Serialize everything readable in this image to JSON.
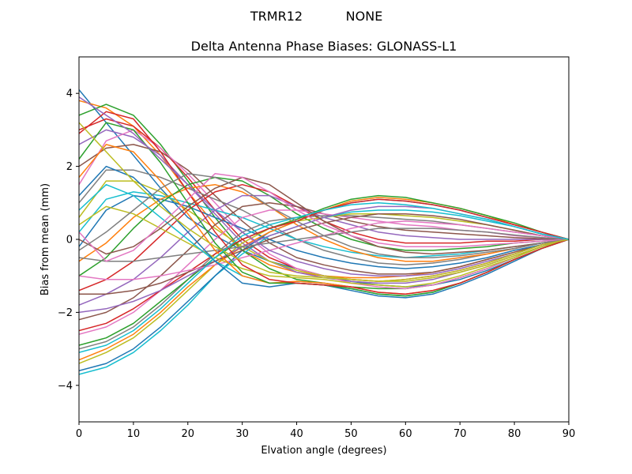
{
  "suptitle": {
    "left": "TRMR12",
    "right": "NONE"
  },
  "chart_data": {
    "type": "line",
    "title": "Delta Antenna Phase Biases: GLONASS-L1",
    "xlabel": "Elvation angle (degrees)",
    "ylabel": "Bias from mean (mm)",
    "xlim": [
      0,
      90
    ],
    "ylim": [
      -5,
      5
    ],
    "xticks": [
      0,
      10,
      20,
      30,
      40,
      50,
      60,
      70,
      80,
      90
    ],
    "yticks": [
      -4,
      -2,
      0,
      2,
      4
    ],
    "grid": false,
    "legend": "none",
    "x": [
      0,
      5,
      10,
      15,
      20,
      25,
      30,
      35,
      40,
      45,
      50,
      55,
      60,
      65,
      70,
      75,
      80,
      85,
      90
    ],
    "palette": [
      "#1f77b4",
      "#ff7f0e",
      "#2ca02c",
      "#d62728",
      "#9467bd",
      "#8c564b",
      "#e377c2",
      "#7f7f7f",
      "#bcbd22",
      "#17becf"
    ],
    "series": [
      {
        "values": [
          4.1,
          3.2,
          2.3,
          1.4,
          0.6,
          0.1,
          -0.3,
          -0.6,
          -0.8,
          -1.0,
          -1.15,
          -1.25,
          -1.3,
          -1.25,
          -1.1,
          -0.85,
          -0.55,
          -0.25,
          0
        ]
      },
      {
        "values": [
          3.8,
          3.6,
          3.1,
          2.3,
          1.3,
          0.4,
          -0.3,
          -0.7,
          -0.9,
          -1.0,
          -1.05,
          -1.05,
          -1.0,
          -0.9,
          -0.75,
          -0.55,
          -0.35,
          -0.15,
          0
        ]
      },
      {
        "values": [
          3.4,
          3.7,
          3.4,
          2.6,
          1.6,
          0.6,
          -0.3,
          -0.8,
          -1.1,
          -1.2,
          -1.3,
          -1.35,
          -1.35,
          -1.25,
          -1.05,
          -0.8,
          -0.5,
          -0.2,
          0
        ]
      },
      {
        "values": [
          3.0,
          3.3,
          3.1,
          2.5,
          1.7,
          0.8,
          0.0,
          -0.5,
          -0.8,
          -1.0,
          -1.1,
          -1.15,
          -1.1,
          -1.0,
          -0.85,
          -0.65,
          -0.4,
          -0.15,
          0
        ]
      },
      {
        "values": [
          2.6,
          3.0,
          2.8,
          2.3,
          1.5,
          0.7,
          -0.1,
          -0.6,
          -0.9,
          -1.05,
          -1.15,
          -1.2,
          -1.2,
          -1.1,
          -0.9,
          -0.7,
          -0.45,
          -0.2,
          0
        ]
      },
      {
        "values": [
          2.0,
          2.5,
          2.6,
          2.4,
          1.9,
          1.2,
          0.5,
          -0.1,
          -0.5,
          -0.7,
          -0.85,
          -0.95,
          -0.95,
          -0.9,
          -0.75,
          -0.55,
          -0.35,
          -0.15,
          0
        ]
      },
      {
        "values": [
          1.5,
          2.7,
          3.0,
          2.5,
          1.8,
          1.0,
          0.2,
          -0.4,
          -0.8,
          -1.0,
          -1.2,
          -1.3,
          -1.35,
          -1.25,
          -1.05,
          -0.8,
          -0.5,
          -0.2,
          0
        ]
      },
      {
        "values": [
          1.0,
          1.9,
          1.9,
          1.7,
          1.4,
          1.1,
          0.8,
          0.4,
          0.0,
          -0.3,
          -0.5,
          -0.65,
          -0.7,
          -0.65,
          -0.55,
          -0.4,
          -0.25,
          -0.1,
          0
        ]
      },
      {
        "values": [
          0.6,
          1.6,
          1.6,
          1.3,
          0.8,
          0.3,
          -0.2,
          -0.6,
          -0.85,
          -1.0,
          -1.1,
          -1.15,
          -1.15,
          -1.05,
          -0.9,
          -0.7,
          -0.45,
          -0.2,
          0
        ]
      },
      {
        "values": [
          0.2,
          1.1,
          1.3,
          1.2,
          1.0,
          0.8,
          0.6,
          0.3,
          0.0,
          -0.2,
          -0.35,
          -0.45,
          -0.5,
          -0.45,
          -0.4,
          -0.3,
          -0.2,
          -0.1,
          0
        ]
      },
      {
        "values": [
          -0.2,
          0.8,
          1.2,
          1.1,
          0.9,
          0.6,
          0.3,
          0.0,
          -0.3,
          -0.5,
          -0.65,
          -0.75,
          -0.8,
          -0.75,
          -0.65,
          -0.5,
          -0.3,
          -0.15,
          0
        ]
      },
      {
        "values": [
          -0.6,
          -0.1,
          0.6,
          1.1,
          1.4,
          1.5,
          1.3,
          0.9,
          0.4,
          0.0,
          -0.3,
          -0.5,
          -0.6,
          -0.6,
          -0.5,
          -0.4,
          -0.25,
          -0.1,
          0
        ]
      },
      {
        "values": [
          -1.0,
          -0.5,
          0.3,
          1.0,
          1.5,
          1.7,
          1.6,
          1.2,
          0.7,
          0.3,
          0.0,
          -0.2,
          -0.3,
          -0.3,
          -0.25,
          -0.2,
          -0.1,
          -0.05,
          0
        ]
      },
      {
        "values": [
          -1.4,
          -1.1,
          -0.6,
          0.1,
          0.8,
          1.3,
          1.5,
          1.3,
          0.9,
          0.5,
          0.2,
          0.0,
          -0.1,
          -0.1,
          -0.1,
          -0.05,
          -0.05,
          0.0,
          0
        ]
      },
      {
        "values": [
          -1.8,
          -1.5,
          -1.1,
          -0.5,
          0.2,
          0.8,
          1.2,
          1.2,
          0.9,
          0.6,
          0.4,
          0.2,
          0.1,
          0.05,
          0.0,
          0.0,
          0.0,
          0.0,
          0
        ]
      },
      {
        "values": [
          -2.2,
          -2.0,
          -1.6,
          -1.0,
          -0.3,
          0.4,
          0.9,
          1.0,
          0.9,
          0.7,
          0.5,
          0.35,
          0.25,
          0.2,
          0.15,
          0.1,
          0.05,
          0.02,
          0
        ]
      },
      {
        "values": [
          -2.6,
          -2.4,
          -2.0,
          -1.4,
          -0.7,
          0.0,
          0.6,
          0.8,
          0.8,
          0.7,
          0.6,
          0.5,
          0.4,
          0.35,
          0.25,
          0.2,
          0.1,
          0.05,
          0
        ]
      },
      {
        "values": [
          -3.0,
          -2.8,
          -2.4,
          -1.8,
          -1.1,
          -0.4,
          0.2,
          0.5,
          0.6,
          0.65,
          0.65,
          0.6,
          0.55,
          0.5,
          0.4,
          0.3,
          0.2,
          0.1,
          0
        ]
      },
      {
        "values": [
          -3.4,
          -3.1,
          -2.7,
          -2.1,
          -1.4,
          -0.7,
          -0.1,
          0.3,
          0.5,
          0.6,
          0.7,
          0.7,
          0.65,
          0.6,
          0.5,
          0.4,
          0.25,
          0.1,
          0
        ]
      },
      {
        "values": [
          -3.7,
          -3.5,
          -3.1,
          -2.5,
          -1.8,
          -1.0,
          -0.4,
          0.1,
          0.35,
          0.6,
          0.75,
          0.8,
          0.8,
          0.75,
          0.65,
          0.5,
          0.35,
          0.15,
          0
        ]
      },
      {
        "values": [
          -3.6,
          -3.4,
          -3.0,
          -2.4,
          -1.7,
          -1.0,
          -0.3,
          0.2,
          0.5,
          0.8,
          1.0,
          1.1,
          1.05,
          0.95,
          0.8,
          0.6,
          0.4,
          0.2,
          0
        ]
      },
      {
        "values": [
          -3.3,
          -3.0,
          -2.6,
          -2.0,
          -1.3,
          -0.7,
          -0.2,
          0.2,
          0.5,
          0.8,
          1.05,
          1.15,
          1.1,
          1.0,
          0.85,
          0.65,
          0.4,
          0.2,
          0
        ]
      },
      {
        "values": [
          -2.9,
          -2.7,
          -2.3,
          -1.7,
          -1.1,
          -0.5,
          0.0,
          0.3,
          0.55,
          0.85,
          1.1,
          1.2,
          1.15,
          1.0,
          0.85,
          0.65,
          0.45,
          0.2,
          0
        ]
      },
      {
        "values": [
          -2.5,
          -2.3,
          -1.9,
          -1.4,
          -0.9,
          -0.4,
          0.0,
          0.3,
          0.5,
          0.8,
          1.0,
          1.1,
          1.05,
          0.95,
          0.8,
          0.6,
          0.4,
          0.2,
          0
        ]
      },
      {
        "values": [
          -2.0,
          -1.9,
          -1.7,
          -1.4,
          -1.0,
          -0.6,
          -0.2,
          0.1,
          0.35,
          0.6,
          0.8,
          0.9,
          0.9,
          0.85,
          0.7,
          0.55,
          0.35,
          0.15,
          0
        ]
      },
      {
        "values": [
          -1.5,
          -1.5,
          -1.4,
          -1.2,
          -0.9,
          -0.6,
          -0.3,
          0.0,
          0.25,
          0.45,
          0.6,
          0.7,
          0.7,
          0.65,
          0.55,
          0.4,
          0.25,
          0.1,
          0
        ]
      },
      {
        "values": [
          -1.0,
          -1.1,
          -1.1,
          -1.0,
          -0.85,
          -0.7,
          -0.5,
          -0.3,
          -0.1,
          0.1,
          0.3,
          0.45,
          0.5,
          0.45,
          0.4,
          0.3,
          0.2,
          0.1,
          0
        ]
      },
      {
        "values": [
          -0.5,
          -0.6,
          -0.6,
          -0.5,
          -0.4,
          -0.3,
          -0.2,
          -0.1,
          0.0,
          0.1,
          0.2,
          0.3,
          0.3,
          0.3,
          0.25,
          0.2,
          0.12,
          0.05,
          0
        ]
      },
      {
        "values": [
          0.4,
          0.9,
          0.7,
          0.3,
          -0.1,
          -0.5,
          -0.8,
          -1.0,
          -1.05,
          -1.1,
          -1.2,
          -1.25,
          -1.3,
          -1.2,
          -1.0,
          -0.75,
          -0.5,
          -0.2,
          0
        ]
      },
      {
        "values": [
          0.8,
          1.5,
          1.2,
          0.6,
          0.0,
          -0.6,
          -1.0,
          -1.2,
          -1.2,
          -1.25,
          -1.35,
          -1.5,
          -1.55,
          -1.45,
          -1.2,
          -0.9,
          -0.55,
          -0.25,
          0
        ]
      },
      {
        "values": [
          1.2,
          2.0,
          1.7,
          1.0,
          0.2,
          -0.6,
          -1.2,
          -1.3,
          -1.2,
          -1.25,
          -1.4,
          -1.55,
          -1.6,
          -1.5,
          -1.25,
          -0.95,
          -0.6,
          -0.25,
          0
        ]
      },
      {
        "values": [
          1.7,
          2.6,
          2.4,
          1.6,
          0.7,
          -0.3,
          -1.0,
          -1.2,
          -1.15,
          -1.2,
          -1.3,
          -1.45,
          -1.5,
          -1.4,
          -1.2,
          -0.9,
          -0.55,
          -0.25,
          0
        ]
      },
      {
        "values": [
          2.2,
          3.2,
          3.0,
          2.1,
          1.0,
          -0.1,
          -0.9,
          -1.2,
          -1.2,
          -1.25,
          -1.35,
          -1.5,
          -1.55,
          -1.45,
          -1.2,
          -0.9,
          -0.55,
          -0.25,
          0
        ]
      },
      {
        "values": [
          2.9,
          3.5,
          3.3,
          2.4,
          1.3,
          0.2,
          -0.7,
          -1.1,
          -1.2,
          -1.25,
          -1.3,
          -1.45,
          -1.5,
          -1.4,
          -1.2,
          -0.9,
          -0.55,
          -0.25,
          0
        ]
      },
      {
        "values": [
          3.9,
          3.4,
          2.9,
          2.2,
          1.5,
          0.8,
          0.2,
          -0.3,
          -0.6,
          -0.8,
          -0.95,
          -1.0,
          -1.0,
          -0.95,
          -0.8,
          -0.6,
          -0.4,
          -0.15,
          0
        ]
      },
      {
        "values": [
          0.0,
          -0.4,
          -0.2,
          0.3,
          0.9,
          1.4,
          1.7,
          1.5,
          1.0,
          0.5,
          0.1,
          -0.2,
          -0.35,
          -0.4,
          -0.35,
          -0.3,
          -0.2,
          -0.1,
          0
        ]
      },
      {
        "values": [
          0.2,
          -0.6,
          -0.3,
          0.4,
          1.1,
          1.8,
          1.7,
          1.3,
          0.8,
          0.4,
          0.1,
          -0.1,
          -0.2,
          -0.2,
          -0.2,
          -0.15,
          -0.1,
          -0.05,
          0
        ]
      },
      {
        "values": [
          -0.3,
          0.2,
          0.8,
          1.4,
          1.8,
          1.7,
          1.4,
          0.9,
          0.5,
          0.1,
          -0.2,
          -0.4,
          -0.5,
          -0.5,
          -0.45,
          -0.35,
          -0.25,
          -0.1,
          0
        ]
      },
      {
        "values": [
          3.2,
          2.4,
          1.6,
          0.9,
          0.3,
          -0.2,
          -0.6,
          -0.9,
          -1.0,
          -1.05,
          -1.1,
          -1.15,
          -1.1,
          -1.0,
          -0.85,
          -0.65,
          -0.4,
          -0.15,
          0
        ]
      },
      {
        "values": [
          -3.1,
          -2.9,
          -2.5,
          -1.9,
          -1.2,
          -0.5,
          0.1,
          0.4,
          0.6,
          0.8,
          0.95,
          1.0,
          0.95,
          0.85,
          0.7,
          0.55,
          0.35,
          0.15,
          0
        ]
      }
    ]
  }
}
